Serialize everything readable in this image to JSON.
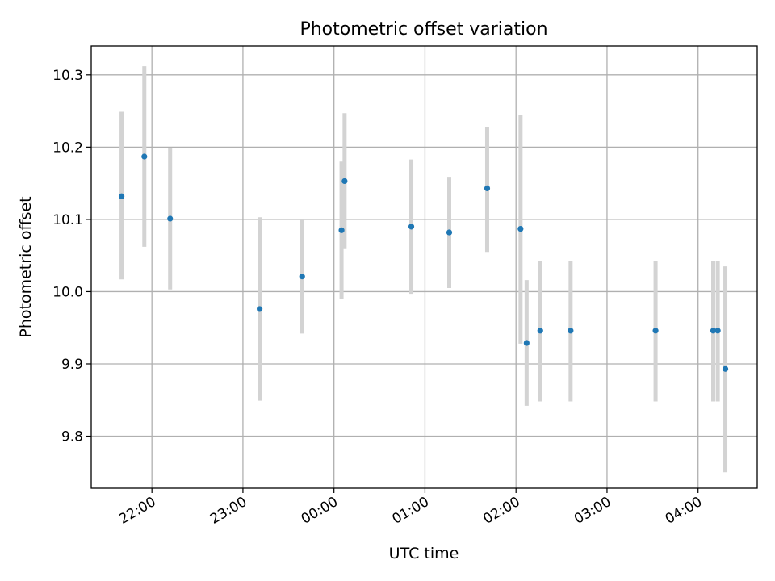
{
  "chart_data": {
    "type": "scatter",
    "title": "Photometric offset variation",
    "xlabel": "UTC time",
    "ylabel": "Photometric offset",
    "x_tick_labels": [
      "22:00",
      "23:00",
      "00:00",
      "01:00",
      "02:00",
      "03:00",
      "04:00"
    ],
    "y_tick_labels": [
      "9.8",
      "9.9",
      "10.0",
      "10.1",
      "10.2",
      "10.3"
    ],
    "y_ticks": [
      9.8,
      9.9,
      10.0,
      10.1,
      10.2,
      10.3
    ],
    "x_ticks": [
      "22:00",
      "23:00",
      "00:00",
      "01:00",
      "02:00",
      "03:00",
      "04:00"
    ],
    "xlim": [
      "21:20",
      "04:39"
    ],
    "ylim": [
      9.728,
      10.34
    ],
    "grid": true,
    "colors": {
      "point": "#1f77b4",
      "errorbar": "#d3d3d3"
    },
    "points": [
      {
        "x": "21:40",
        "y": 10.132,
        "ylow": 10.017,
        "yhigh": 10.249
      },
      {
        "x": "21:55",
        "y": 10.187,
        "ylow": 10.062,
        "yhigh": 10.312
      },
      {
        "x": "22:12",
        "y": 10.101,
        "ylow": 10.003,
        "yhigh": 10.199
      },
      {
        "x": "23:11",
        "y": 9.976,
        "ylow": 9.849,
        "yhigh": 10.103
      },
      {
        "x": "23:39",
        "y": 10.021,
        "ylow": 9.942,
        "yhigh": 10.1
      },
      {
        "x": "00:05",
        "y": 10.085,
        "ylow": 9.99,
        "yhigh": 10.18
      },
      {
        "x": "00:07",
        "y": 10.153,
        "ylow": 10.06,
        "yhigh": 10.247
      },
      {
        "x": "00:51",
        "y": 10.09,
        "ylow": 9.997,
        "yhigh": 10.183
      },
      {
        "x": "01:16",
        "y": 10.082,
        "ylow": 10.005,
        "yhigh": 10.159
      },
      {
        "x": "01:41",
        "y": 10.143,
        "ylow": 10.055,
        "yhigh": 10.228
      },
      {
        "x": "02:03",
        "y": 10.087,
        "ylow": 9.928,
        "yhigh": 10.245
      },
      {
        "x": "02:07",
        "y": 9.929,
        "ylow": 9.842,
        "yhigh": 10.016
      },
      {
        "x": "02:16",
        "y": 9.946,
        "ylow": 9.848,
        "yhigh": 10.043
      },
      {
        "x": "02:36",
        "y": 9.946,
        "ylow": 9.848,
        "yhigh": 10.043
      },
      {
        "x": "03:32",
        "y": 9.946,
        "ylow": 9.848,
        "yhigh": 10.043
      },
      {
        "x": "04:10",
        "y": 9.946,
        "ylow": 9.848,
        "yhigh": 10.043
      },
      {
        "x": "04:13",
        "y": 9.946,
        "ylow": 9.848,
        "yhigh": 10.043
      },
      {
        "x": "04:18",
        "y": 9.893,
        "ylow": 9.75,
        "yhigh": 10.035
      }
    ]
  }
}
